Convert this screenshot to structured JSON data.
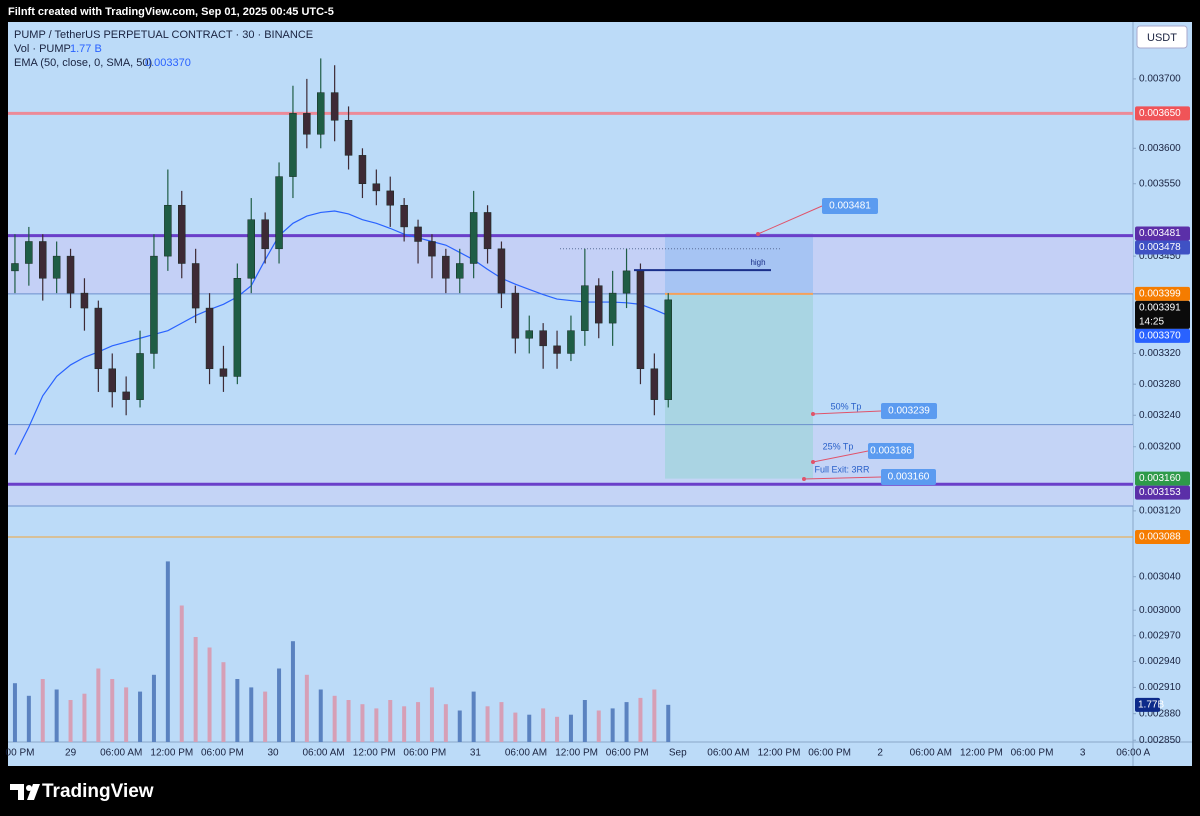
{
  "header": {
    "attribution": "Filnft created with TradingView.com, Sep 01, 2025 00:45 UTC-5",
    "symbol": "PUMP / TetherUS PERPETUAL CONTRACT · 30 · BINANCE",
    "volume_label": "Vol · PUMP",
    "volume_value": "1.77 B",
    "ema_label": "EMA (50, close, 0, SMA, 50)",
    "ema_value": "0.003370",
    "currency": "USDT"
  },
  "chart_data": {
    "type": "candlestick",
    "log_scale": true,
    "grid": false,
    "ylim": [
      0.002848,
      0.003784
    ],
    "yticks": [
      {
        "value": 0.0037,
        "label": "0.003700"
      },
      {
        "value": 0.0036,
        "label": "0.003600"
      },
      {
        "value": 0.00355,
        "label": "0.003550"
      },
      {
        "value": 0.00345,
        "label": "0.003450"
      },
      {
        "value": 0.00332,
        "label": "0.003320"
      },
      {
        "value": 0.00328,
        "label": "0.003280"
      },
      {
        "value": 0.00324,
        "label": "0.003240"
      },
      {
        "value": 0.0032,
        "label": "0.003200"
      },
      {
        "value": 0.00312,
        "label": "0.003120"
      },
      {
        "value": 0.00304,
        "label": "0.003040"
      },
      {
        "value": 0.003,
        "label": "0.003000"
      },
      {
        "value": 0.00297,
        "label": "0.002970"
      },
      {
        "value": 0.00294,
        "label": "0.002940"
      },
      {
        "value": 0.00291,
        "label": "0.002910"
      },
      {
        "value": 0.00288,
        "label": "0.002880"
      },
      {
        "value": 0.00285,
        "label": "0.002850"
      }
    ],
    "xtick_labels": [
      "00 PM",
      "29",
      "06:00 AM",
      "12:00 PM",
      "06:00 PM",
      "30",
      "06:00 AM",
      "12:00 PM",
      "06:00 PM",
      "31",
      "06:00 AM",
      "12:00 PM",
      "06:00 PM",
      "Sep",
      "06:00 AM",
      "12:00 PM",
      "06:00 PM",
      "2",
      "06:00 AM",
      "12:00 PM",
      "06:00 PM",
      "3",
      "06:00 A"
    ],
    "up_color": "#1f5d45",
    "down_color": "#3d2a35",
    "open": [
      0.00343,
      0.00344,
      0.00347,
      0.00342,
      0.00345,
      0.0034,
      0.00338,
      0.0033,
      0.00327,
      0.00326,
      0.00332,
      0.00345,
      0.00352,
      0.00344,
      0.00338,
      0.0033,
      0.00329,
      0.00342,
      0.0035,
      0.00346,
      0.00356,
      0.00365,
      0.00362,
      0.00368,
      0.00364,
      0.00359,
      0.00355,
      0.00354,
      0.00352,
      0.00349,
      0.00347,
      0.00345,
      0.00342,
      0.00344,
      0.00351,
      0.00346,
      0.0034,
      0.00334,
      0.00335,
      0.00333,
      0.00332,
      0.00335,
      0.00341,
      0.00336,
      0.0034,
      0.00343,
      0.0033,
      0.00326
    ],
    "high": [
      0.00348,
      0.00349,
      0.00348,
      0.00347,
      0.00346,
      0.00342,
      0.00339,
      0.00332,
      0.00329,
      0.00335,
      0.00348,
      0.00357,
      0.00354,
      0.00346,
      0.0034,
      0.00333,
      0.00344,
      0.00353,
      0.00351,
      0.00358,
      0.00369,
      0.0037,
      0.00373,
      0.00372,
      0.00366,
      0.0036,
      0.00357,
      0.00356,
      0.00353,
      0.0035,
      0.00348,
      0.00346,
      0.00346,
      0.00354,
      0.00352,
      0.00347,
      0.00341,
      0.00337,
      0.00336,
      0.00335,
      0.00337,
      0.00346,
      0.00342,
      0.00343,
      0.00346,
      0.00344,
      0.00332,
      0.0034
    ],
    "low": [
      0.0034,
      0.00341,
      0.00339,
      0.0034,
      0.00338,
      0.00335,
      0.00327,
      0.00325,
      0.00324,
      0.00325,
      0.0033,
      0.00343,
      0.00342,
      0.00336,
      0.00328,
      0.00327,
      0.00328,
      0.0034,
      0.00344,
      0.00344,
      0.00353,
      0.0036,
      0.0036,
      0.00361,
      0.00357,
      0.00353,
      0.00352,
      0.00349,
      0.00347,
      0.00344,
      0.00342,
      0.0034,
      0.0034,
      0.00342,
      0.00344,
      0.00338,
      0.00332,
      0.00332,
      0.0033,
      0.0033,
      0.00331,
      0.00333,
      0.00334,
      0.00333,
      0.00338,
      0.00328,
      0.00324,
      0.00325
    ],
    "close": [
      0.00344,
      0.00347,
      0.00342,
      0.00345,
      0.0034,
      0.00338,
      0.0033,
      0.00327,
      0.00326,
      0.00332,
      0.00345,
      0.00352,
      0.00344,
      0.00338,
      0.0033,
      0.00329,
      0.00342,
      0.0035,
      0.00346,
      0.00356,
      0.00365,
      0.00362,
      0.00368,
      0.00364,
      0.00359,
      0.00355,
      0.00354,
      0.00352,
      0.00349,
      0.00347,
      0.00345,
      0.00342,
      0.00344,
      0.00351,
      0.00346,
      0.0034,
      0.00334,
      0.00335,
      0.00333,
      0.00332,
      0.00335,
      0.00341,
      0.00336,
      0.0034,
      0.00343,
      0.0033,
      0.00326,
      0.003391
    ],
    "ema": {
      "color": "#2962ff",
      "values": [
        0.00319,
        0.003225,
        0.003265,
        0.00329,
        0.003305,
        0.003315,
        0.003322,
        0.00333,
        0.003335,
        0.00334,
        0.003345,
        0.00335,
        0.00336,
        0.00337,
        0.003378,
        0.003385,
        0.003395,
        0.00341,
        0.003445,
        0.003478,
        0.003495,
        0.003505,
        0.00351,
        0.003512,
        0.003508,
        0.0035,
        0.003495,
        0.003488,
        0.00348,
        0.003475,
        0.00347,
        0.003465,
        0.003455,
        0.003445,
        0.003432,
        0.00342,
        0.003412,
        0.003405,
        0.003398,
        0.003392,
        0.00339,
        0.003388,
        0.003388,
        0.003388,
        0.003387,
        0.003385,
        0.003378,
        0.00337
      ]
    },
    "volume": {
      "up_color": "#5a82c0",
      "down_color": "#d69fb6",
      "last_label": "1.77B",
      "values": [
        2.8,
        2.2,
        3.0,
        2.5,
        2.0,
        2.3,
        3.5,
        3.0,
        2.6,
        2.4,
        3.2,
        8.6,
        6.5,
        5.0,
        4.5,
        3.8,
        3.0,
        2.6,
        2.4,
        3.5,
        4.8,
        3.2,
        2.5,
        2.2,
        2.0,
        1.8,
        1.6,
        2.0,
        1.7,
        1.9,
        2.6,
        1.8,
        1.5,
        2.4,
        1.7,
        1.9,
        1.4,
        1.3,
        1.6,
        1.2,
        1.3,
        2.0,
        1.5,
        1.6,
        1.9,
        2.1,
        2.5,
        1.77
      ]
    },
    "zones": [
      {
        "from": 0.003399,
        "to": 0.003478,
        "color": "#c4d0f6"
      },
      {
        "from": 0.003126,
        "to": 0.003228,
        "color": "#c4d4f6"
      }
    ],
    "levels": [
      {
        "value": 0.00365,
        "color": "#ec8a98",
        "width": 3
      },
      {
        "value": 0.003478,
        "color": "#6a3fc9",
        "width": 3
      },
      {
        "value": 0.003399,
        "color": "#6b8fcc",
        "width": 1
      },
      {
        "value": 0.003228,
        "color": "#6b8fcc",
        "width": 1
      },
      {
        "value": 0.003153,
        "color": "#6a3fc9",
        "width": 3
      },
      {
        "value": 0.003126,
        "color": "#6b8fcc",
        "width": 1
      },
      {
        "value": 0.003088,
        "color": "#f2a43a",
        "width": 1
      }
    ],
    "position": {
      "entry": 0.003399,
      "stop": 0.003481,
      "target": 0.00316
    },
    "high_line": {
      "label": "high",
      "value": 0.003431
    },
    "dotted_level": 0.00346,
    "callouts": [
      {
        "text": "0.003481"
      },
      {
        "label": "50% Tp",
        "text": "0.003239"
      },
      {
        "label": "25% Tp",
        "text": "0.003186"
      },
      {
        "label": "Full Exit: 3RR",
        "text": "0.003160"
      }
    ],
    "price_labels": [
      {
        "value": 0.00365,
        "label": "0.003650",
        "color": "#f05458"
      },
      {
        "value": 0.003481,
        "label": "0.003481",
        "color": "#5b2fa8"
      },
      {
        "value": 0.003478,
        "label": "0.003478",
        "color": "#3f51c4"
      },
      {
        "value": 0.003399,
        "label": "0.003399",
        "color": "#f57c00"
      },
      {
        "value": 0.003391,
        "label": "0.003391",
        "color": "#0b0b0b",
        "countdown": "14:25"
      },
      {
        "value": 0.00337,
        "label": "0.003370",
        "color": "#2962ff"
      },
      {
        "value": 0.00316,
        "label": "0.003160",
        "color": "#2e9a4a"
      },
      {
        "value": 0.003153,
        "label": "0.003153",
        "color": "#5b2fa8"
      },
      {
        "value": 0.003088,
        "label": "0.003088",
        "color": "#f57c00"
      }
    ]
  },
  "footer": {
    "logo": "TradingView"
  }
}
